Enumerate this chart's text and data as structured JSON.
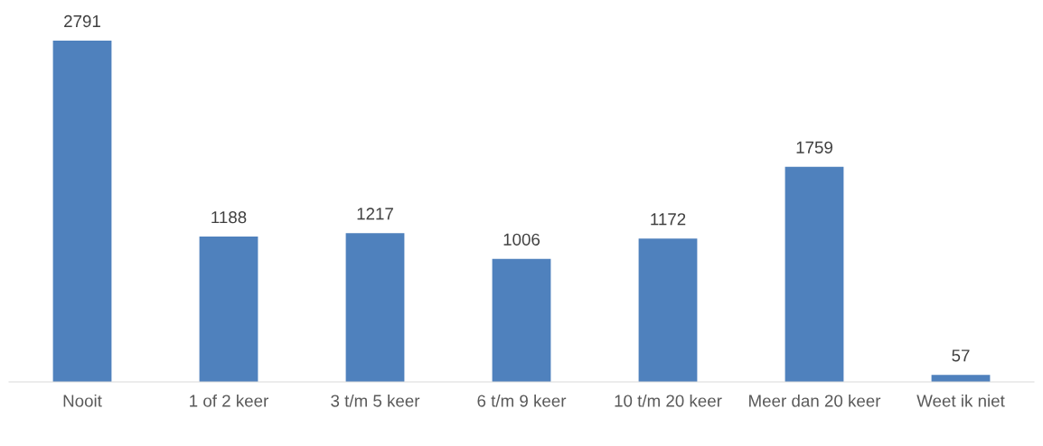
{
  "chart_data": {
    "type": "bar",
    "categories": [
      "Nooit",
      "1 of 2 keer",
      "3 t/m 5 keer",
      "6 t/m 9 keer",
      "10 t/m 20 keer",
      "Meer dan 20 keer",
      "Weet ik niet"
    ],
    "values": [
      2791,
      1188,
      1217,
      1006,
      1172,
      1759,
      57
    ],
    "color": "#4f81bd",
    "data_labels": true,
    "grid": false,
    "legend": false
  }
}
